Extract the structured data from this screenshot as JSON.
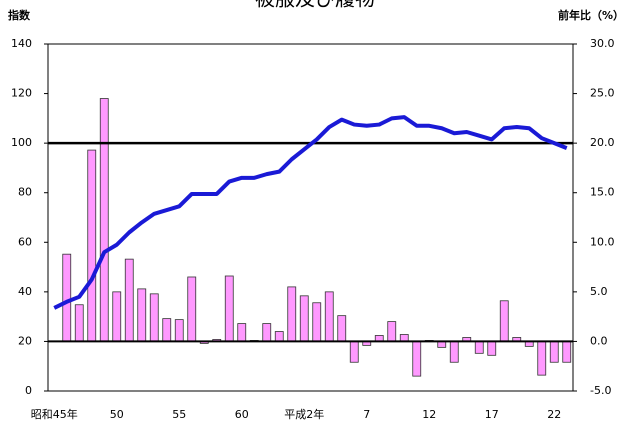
{
  "chart_data": {
    "type": "bar_line",
    "title": "被服及び履物",
    "y_label": "指数",
    "y2_label": "前年比（%）",
    "categories": [
      "昭和45年",
      null,
      null,
      null,
      null,
      "50",
      null,
      null,
      null,
      null,
      "55",
      null,
      null,
      null,
      null,
      "60",
      null,
      null,
      null,
      null,
      "平成2年",
      null,
      null,
      null,
      null,
      "7",
      null,
      null,
      null,
      null,
      "12",
      null,
      null,
      null,
      null,
      "17",
      null,
      null,
      null,
      null,
      "22",
      null
    ],
    "series": [
      {
        "kind": "bar",
        "axis": "y2",
        "color": "#ff99ff",
        "values": [
          null,
          8.8,
          3.7,
          19.3,
          24.5,
          5.0,
          8.3,
          5.3,
          4.8,
          2.3,
          2.2,
          6.5,
          -0.2,
          0.2,
          6.6,
          1.8,
          0.1,
          1.8,
          1.0,
          5.5,
          4.6,
          3.9,
          5.0,
          2.6,
          -2.1,
          -0.4,
          0.6,
          2.0,
          0.7,
          -3.5,
          0.1,
          -0.6,
          -2.1,
          0.4,
          -1.2,
          -1.4,
          4.1,
          0.4,
          -0.5,
          -3.4,
          -2.1,
          -2.1
        ]
      },
      {
        "kind": "line",
        "axis": "y",
        "color": "#1a1ad6",
        "values": [
          33.5,
          36,
          38,
          45,
          56,
          59,
          64,
          68,
          71.5,
          73,
          74.5,
          79.5,
          79.5,
          79.5,
          84.5,
          86,
          86,
          87.5,
          88.5,
          93.5,
          97.5,
          101.5,
          106.5,
          109.5,
          107.5,
          107,
          107.5,
          110,
          110.5,
          107,
          107,
          106,
          104,
          104.5,
          103,
          101.5,
          106,
          106.5,
          106,
          102,
          100,
          98
        ]
      }
    ],
    "ylim": [
      0,
      140
    ],
    "yticks": [
      0,
      20,
      40,
      60,
      80,
      100,
      120,
      140
    ],
    "y2lim": [
      -5,
      30
    ],
    "y2ticks": [
      {
        "value": -5,
        "label": "-5.0"
      },
      {
        "value": 0,
        "label": "0.0"
      },
      {
        "value": 5,
        "label": "5.0"
      },
      {
        "value": 10,
        "label": "10.0"
      },
      {
        "value": 15,
        "label": "15.0"
      },
      {
        "value": 20,
        "label": "20.0"
      },
      {
        "value": 25,
        "label": "25.0"
      },
      {
        "value": 30,
        "label": "30.0"
      }
    ],
    "hline": 100
  }
}
